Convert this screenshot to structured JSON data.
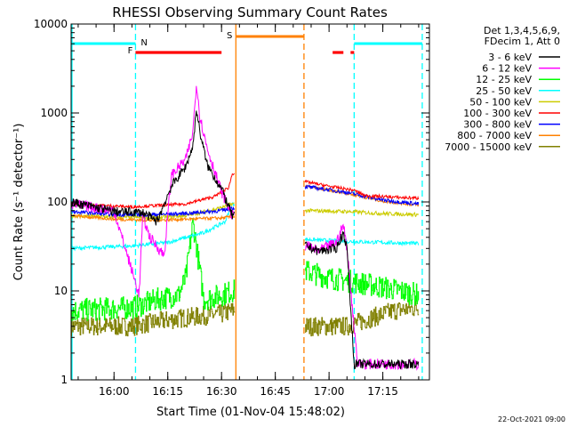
{
  "chart_data": {
    "type": "line",
    "title": "RHESSI Observing Summary Count Rates",
    "xlabel": "Start Time (01-Nov-04 15:48:02)",
    "ylabel": "Count Rate (s⁻¹ detector⁻¹)",
    "footer": "22-Oct-2021 09:00",
    "yscale": "log",
    "ylim": [
      1,
      10000
    ],
    "xlim": [
      "15:48:02",
      "17:28:00"
    ],
    "x_ticks": [
      "16:00",
      "16:15",
      "16:30",
      "16:45",
      "17:00",
      "17:15"
    ],
    "y_ticks": [
      "1",
      "10",
      "100",
      "1000",
      "10000"
    ],
    "legend_header": [
      "Det 1,3,4,5,6,9,",
      "FDecim 1, Att 0"
    ],
    "legend_position": "right",
    "series": [
      {
        "name": "3 - 6 keV",
        "color": "#000000"
      },
      {
        "name": "6 - 12 keV",
        "color": "#ff00ff"
      },
      {
        "name": "12 - 25 keV",
        "color": "#00ff00"
      },
      {
        "name": "25 - 50 keV",
        "color": "#00ffff"
      },
      {
        "name": "50 - 100 keV",
        "color": "#cccc00"
      },
      {
        "name": "100 - 300 keV",
        "color": "#ff0000"
      },
      {
        "name": "300 - 800 keV",
        "color": "#0000ff"
      },
      {
        "name": "800 - 7000 keV",
        "color": "#ff8000"
      },
      {
        "name": "7000 - 15000 keV",
        "color": "#808000"
      }
    ],
    "flags": {
      "N_label": "N",
      "F_label": "F",
      "S_label": "S",
      "night_color": "#00ffff",
      "flare_color": "#ff0000",
      "saa_color": "#ff8000",
      "night": [
        [
          "15:48",
          "16:06"
        ],
        [
          "17:07",
          "17:26"
        ]
      ],
      "flare": [
        [
          "16:06",
          "16:30"
        ],
        [
          "17:01",
          "17:04"
        ],
        [
          "17:06",
          "17:07"
        ]
      ],
      "saa": [
        [
          "16:34",
          "16:53"
        ]
      ]
    },
    "data_gaps": [
      [
        "16:34",
        "16:53"
      ]
    ]
  }
}
